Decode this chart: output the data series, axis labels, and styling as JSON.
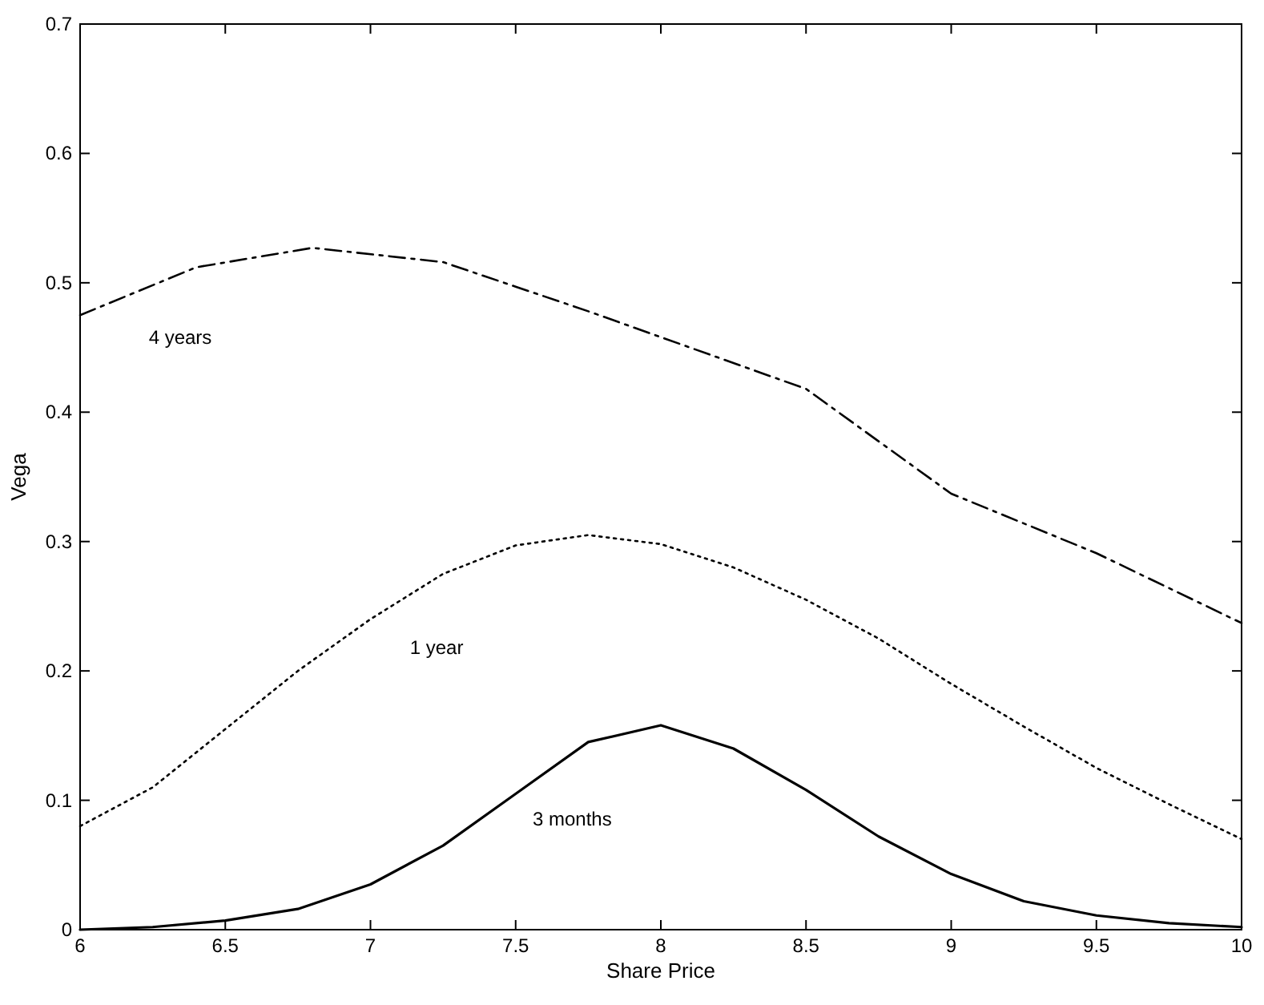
{
  "chart_data": {
    "type": "line",
    "xlabel": "Share Price",
    "ylabel": "Vega",
    "xlim": [
      6,
      10
    ],
    "ylim": [
      0,
      0.7
    ],
    "xticks": [
      6,
      6.5,
      7,
      7.5,
      8,
      8.5,
      9,
      9.5,
      10
    ],
    "yticks": [
      0,
      0.1,
      0.2,
      0.3,
      0.4,
      0.5,
      0.6,
      0.7
    ],
    "grid": false,
    "marker": "none",
    "x": [
      6,
      6.25,
      6.5,
      6.75,
      7,
      7.25,
      7.5,
      7.75,
      8,
      8.25,
      8.5,
      8.75,
      9,
      9.25,
      9.5,
      9.75,
      10
    ],
    "series": [
      {
        "name": "4 years",
        "color": "#000000",
        "line_style": "dashed",
        "x": [
          6,
          6.4,
          6.8,
          7.25,
          7.5,
          7.75,
          8,
          8.5,
          9,
          9.5,
          10
        ],
        "values": [
          0.475,
          0.512,
          0.527,
          0.516,
          0.497,
          0.478,
          0.458,
          0.418,
          0.337,
          0.291,
          0.237
        ]
      },
      {
        "name": "1 year",
        "color": "#000000",
        "line_style": "dotted",
        "values": [
          0.08,
          0.11,
          0.155,
          0.2,
          0.24,
          0.275,
          0.297,
          0.305,
          0.298,
          0.28,
          0.255,
          0.225,
          0.19,
          0.157,
          0.125,
          0.097,
          0.07
        ]
      },
      {
        "name": "3 months",
        "color": "#000000",
        "line_style": "solid",
        "values": [
          0,
          0.002,
          0.007,
          0.016,
          0.035,
          0.065,
          0.105,
          0.145,
          0.158,
          0.14,
          0.108,
          0.072,
          0.043,
          0.022,
          0.011,
          0.005,
          0.002
        ]
      }
    ]
  }
}
